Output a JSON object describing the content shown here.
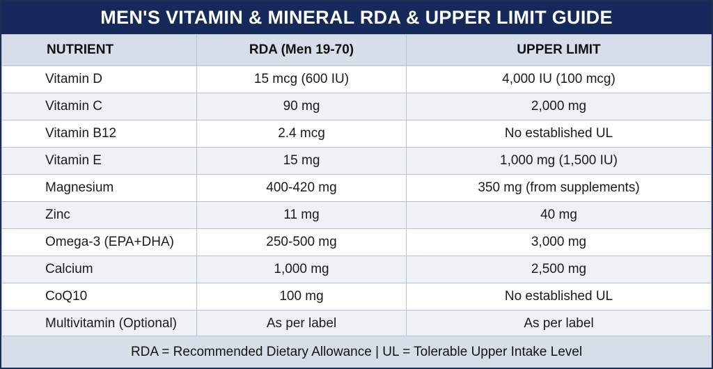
{
  "title": "MEN'S VITAMIN & MINERAL RDA & UPPER LIMIT GUIDE",
  "headers": {
    "nutrient": "NUTRIENT",
    "rda": "RDA (Men 19-70)",
    "upper_limit": "UPPER LIMIT"
  },
  "rows": [
    {
      "nutrient": "Vitamin D",
      "rda": "15 mcg (600 IU)",
      "upper_limit": "4,000 IU (100 mcg)"
    },
    {
      "nutrient": "Vitamin C",
      "rda": "90 mg",
      "upper_limit": "2,000 mg"
    },
    {
      "nutrient": "Vitamin B12",
      "rda": "2.4 mcg",
      "upper_limit": "No established UL"
    },
    {
      "nutrient": "Vitamin E",
      "rda": "15 mg",
      "upper_limit": "1,000 mg (1,500 IU)"
    },
    {
      "nutrient": "Magnesium",
      "rda": "400-420 mg",
      "upper_limit": "350 mg (from supplements)"
    },
    {
      "nutrient": "Zinc",
      "rda": "11 mg",
      "upper_limit": "40 mg"
    },
    {
      "nutrient": "Omega-3 (EPA+DHA)",
      "rda": "250-500 mg",
      "upper_limit": "3,000 mg"
    },
    {
      "nutrient": "Calcium",
      "rda": "1,000 mg",
      "upper_limit": "2,500 mg"
    },
    {
      "nutrient": "CoQ10",
      "rda": "100 mg",
      "upper_limit": "No established UL"
    },
    {
      "nutrient": "Multivitamin (Optional)",
      "rda": "As per label",
      "upper_limit": "As per label"
    }
  ],
  "footer": "RDA = Recommended Dietary Allowance | UL = Tolerable Upper Intake Level",
  "colors": {
    "title_bg": "#15295a",
    "header_bg": "#d6deea",
    "row_alt_bg": "#eef2f7",
    "grid": "#b8c2d3"
  }
}
